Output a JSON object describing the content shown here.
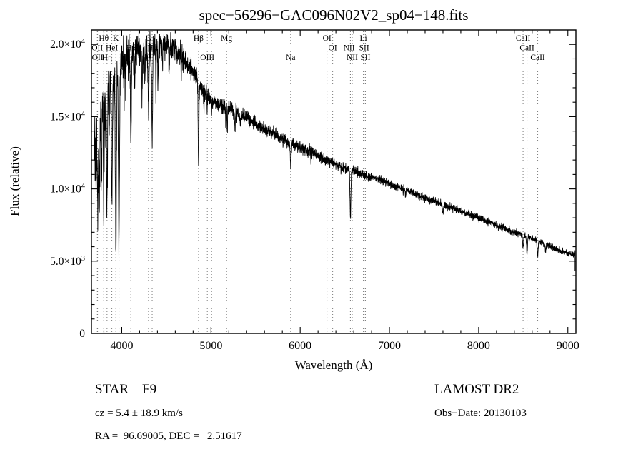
{
  "chart_data": {
    "type": "line",
    "title": "spec−56296−GAC096N02V2_sp04−148.fits",
    "xlabel": "Wavelength (Å)",
    "ylabel": "Flux (relative)",
    "xlim": [
      3660,
      9090
    ],
    "ylim": [
      0,
      21000
    ],
    "xticks": [
      {
        "value": 4000,
        "label": "4000"
      },
      {
        "value": 5000,
        "label": "5000"
      },
      {
        "value": 6000,
        "label": "6000"
      },
      {
        "value": 7000,
        "label": "7000"
      },
      {
        "value": 8000,
        "label": "8000"
      },
      {
        "value": 9000,
        "label": "9000"
      }
    ],
    "yticks": [
      {
        "value": 0,
        "label": "0"
      },
      {
        "value": 5000,
        "label": "5.0×10^3"
      },
      {
        "value": 10000,
        "label": "1.0×10^4"
      },
      {
        "value": 15000,
        "label": "1.5×10^4"
      },
      {
        "value": 20000,
        "label": "2.0×10^4"
      }
    ],
    "x_minor_step": 200,
    "y_minor_step": 1000,
    "grid": false,
    "wavelength_range": [
      3692,
      9080
    ],
    "end_drop_flux": 4300,
    "noise_seed": 12,
    "continuum": [
      [
        3692,
        13200
      ],
      [
        3710,
        14100
      ],
      [
        3730,
        14800
      ],
      [
        3760,
        15400
      ],
      [
        3800,
        16200
      ],
      [
        3840,
        16900
      ],
      [
        3880,
        17600
      ],
      [
        3920,
        18200
      ],
      [
        3960,
        18700
      ],
      [
        4000,
        19000
      ],
      [
        4060,
        19300
      ],
      [
        4140,
        19500
      ],
      [
        4220,
        19650
      ],
      [
        4300,
        19750
      ],
      [
        4380,
        19900
      ],
      [
        4460,
        20000
      ],
      [
        4540,
        19950
      ],
      [
        4620,
        19650
      ],
      [
        4700,
        18900
      ],
      [
        4780,
        18300
      ],
      [
        4860,
        17500
      ],
      [
        4940,
        16600
      ],
      [
        5000,
        16200
      ],
      [
        5080,
        15900
      ],
      [
        5160,
        15650
      ],
      [
        5240,
        15450
      ],
      [
        5320,
        15150
      ],
      [
        5400,
        14900
      ],
      [
        5500,
        14500
      ],
      [
        5600,
        14150
      ],
      [
        5700,
        13800
      ],
      [
        5800,
        13450
      ],
      [
        5900,
        13100
      ],
      [
        6000,
        12850
      ],
      [
        6100,
        12600
      ],
      [
        6200,
        12300
      ],
      [
        6300,
        12000
      ],
      [
        6400,
        11700
      ],
      [
        6500,
        11400
      ],
      [
        6600,
        11200
      ],
      [
        6700,
        11000
      ],
      [
        6800,
        10800
      ],
      [
        6900,
        10600
      ],
      [
        7000,
        10350
      ],
      [
        7100,
        10100
      ],
      [
        7200,
        9900
      ],
      [
        7300,
        9650
      ],
      [
        7400,
        9400
      ],
      [
        7500,
        9150
      ],
      [
        7600,
        8900
      ],
      [
        7700,
        8700
      ],
      [
        7800,
        8450
      ],
      [
        7900,
        8250
      ],
      [
        8000,
        8000
      ],
      [
        8100,
        7750
      ],
      [
        8200,
        7500
      ],
      [
        8300,
        7250
      ],
      [
        8400,
        7000
      ],
      [
        8500,
        6800
      ],
      [
        8600,
        6550
      ],
      [
        8700,
        6300
      ],
      [
        8800,
        6050
      ],
      [
        8900,
        5750
      ],
      [
        9000,
        5550
      ],
      [
        9080,
        5450
      ]
    ],
    "absorption_lines": [
      [
        3712,
        2600,
        4
      ],
      [
        3727,
        3600,
        4
      ],
      [
        3734,
        4200,
        4
      ],
      [
        3750,
        5600,
        5
      ],
      [
        3771,
        5200,
        4
      ],
      [
        3798,
        6600,
        5
      ],
      [
        3820,
        3200,
        3
      ],
      [
        3835,
        8200,
        5
      ],
      [
        3860,
        3600,
        3
      ],
      [
        3889,
        8800,
        5
      ],
      [
        3912,
        2600,
        3
      ],
      [
        3934,
        12600,
        6
      ],
      [
        3969,
        13200,
        6
      ],
      [
        4026,
        2300,
        3
      ],
      [
        4045,
        3100,
        3
      ],
      [
        4102,
        6300,
        5
      ],
      [
        4144,
        2100,
        3
      ],
      [
        4227,
        3300,
        3
      ],
      [
        4260,
        2300,
        3
      ],
      [
        4300,
        3800,
        6
      ],
      [
        4341,
        6100,
        5
      ],
      [
        4383,
        3600,
        3
      ],
      [
        4405,
        2500,
        3
      ],
      [
        4455,
        1600,
        3
      ],
      [
        4531,
        1900,
        3
      ],
      [
        4668,
        1600,
        3
      ],
      [
        4861,
        5300,
        5
      ],
      [
        4920,
        1300,
        3
      ],
      [
        4957,
        900,
        3
      ],
      [
        5007,
        700,
        3
      ],
      [
        5167,
        1400,
        3
      ],
      [
        5183,
        1700,
        3
      ],
      [
        5270,
        1300,
        4
      ],
      [
        5328,
        900,
        3
      ],
      [
        5893,
        1500,
        5
      ],
      [
        6122,
        600,
        3
      ],
      [
        6563,
        3300,
        5
      ],
      [
        7180,
        450,
        4
      ],
      [
        7600,
        550,
        6
      ],
      [
        8498,
        850,
        5
      ],
      [
        8542,
        1150,
        5
      ],
      [
        8662,
        1050,
        5
      ],
      [
        8750,
        500,
        4
      ]
    ],
    "noise_profile": [
      [
        3692,
        1500
      ],
      [
        3780,
        1200
      ],
      [
        3880,
        950
      ],
      [
        4000,
        700
      ],
      [
        4200,
        560
      ],
      [
        4500,
        420
      ],
      [
        5000,
        300
      ],
      [
        5500,
        230
      ],
      [
        6000,
        200
      ],
      [
        6500,
        165
      ],
      [
        7000,
        145
      ],
      [
        7500,
        130
      ],
      [
        8000,
        120
      ],
      [
        8600,
        115
      ],
      [
        9080,
        110
      ]
    ],
    "line_markers": [
      {
        "wavelength": 3726,
        "label": "OII",
        "row": 1
      },
      {
        "wavelength": 3729,
        "label": "OII",
        "row": 2
      },
      {
        "wavelength": 3798,
        "label": "Hθ",
        "row": 0
      },
      {
        "wavelength": 3835,
        "label": "Hη",
        "row": 2
      },
      {
        "wavelength": 3889,
        "label": "HeI",
        "row": 1
      },
      {
        "wavelength": 3934,
        "label": "K",
        "row": 0
      },
      {
        "wavelength": 3969,
        "label": "",
        "row": 0
      },
      {
        "wavelength": 4102,
        "label": "Hδ",
        "row": 1
      },
      {
        "wavelength": 4300,
        "label": "G",
        "row": 0
      },
      {
        "wavelength": 4341,
        "label": "Hγ",
        "row": 1
      },
      {
        "wavelength": 4861,
        "label": "Hβ",
        "row": 0
      },
      {
        "wavelength": 4959,
        "label": "OIII",
        "row": 2
      },
      {
        "wavelength": 5007,
        "label": "",
        "row": 0
      },
      {
        "wavelength": 5175,
        "label": "Mg",
        "row": 0
      },
      {
        "wavelength": 5893,
        "label": "Na",
        "row": 2
      },
      {
        "wavelength": 6300,
        "label": "OI",
        "row": 0
      },
      {
        "wavelength": 6364,
        "label": "OI",
        "row": 1
      },
      {
        "wavelength": 6548,
        "label": "NII",
        "row": 1
      },
      {
        "wavelength": 6563,
        "label": "",
        "row": 0
      },
      {
        "wavelength": 6583,
        "label": "NII",
        "row": 2
      },
      {
        "wavelength": 6708,
        "label": "Li",
        "row": 0
      },
      {
        "wavelength": 6717,
        "label": "SII",
        "row": 1
      },
      {
        "wavelength": 6731,
        "label": "SII",
        "row": 2
      },
      {
        "wavelength": 8498,
        "label": "CaII",
        "row": 0
      },
      {
        "wavelength": 8542,
        "label": "CaII",
        "row": 1
      },
      {
        "wavelength": 8662,
        "label": "CaII",
        "row": 2
      }
    ]
  },
  "footer": {
    "star_class": "STAR    F9",
    "survey": "LAMOST DR2",
    "cz": "cz = 5.4 ± 18.9 km/s",
    "obs_date": "Obs−Date: 20130103",
    "ra_dec": "RA =  96.69005, DEC =   2.51617"
  }
}
